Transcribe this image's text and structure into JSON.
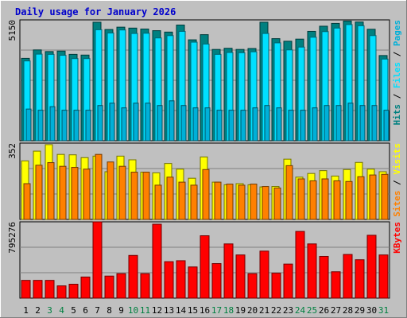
{
  "colors": {
    "background": "#c0c0c0",
    "plot_bg": "#c0c0c0",
    "grid": "#808080",
    "title": "#0000cc",
    "hits": "#008080",
    "files": "#00e0ff",
    "pages": "#00b0d8",
    "visits": "#ffff00",
    "sites": "#ff8000",
    "kbytes": "#ff0000",
    "weekend_label": "#008040",
    "weekday_label": "#000000"
  },
  "chart_data": {
    "type": "bar",
    "title": "Daily usage for January 2026",
    "categories": [
      "1",
      "2",
      "3",
      "4",
      "5",
      "6",
      "7",
      "8",
      "9",
      "10",
      "11",
      "12",
      "13",
      "14",
      "15",
      "16",
      "17",
      "18",
      "19",
      "20",
      "21",
      "22",
      "23",
      "24",
      "25",
      "26",
      "27",
      "28",
      "29",
      "30",
      "31"
    ],
    "weekend_days": [
      "3",
      "4",
      "10",
      "11",
      "17",
      "18",
      "24",
      "25",
      "31"
    ],
    "panels": [
      {
        "id": "hits",
        "ymax": 5150,
        "ymax_label": "5150",
        "legend": [
          {
            "name": "Hits",
            "color": "#008080"
          },
          {
            "name": "Files",
            "color": "#00e0ff"
          },
          {
            "name": "Pages",
            "color": "#00b0d8"
          }
        ],
        "series": [
          {
            "name": "Hits",
            "values": [
              3510,
              3870,
              3800,
              3820,
              3680,
              3650,
              5050,
              4740,
              4840,
              4800,
              4760,
              4690,
              4630,
              4930,
              4300,
              4520,
              3890,
              3940,
              3890,
              3930,
              5050,
              4350,
              4240,
              4330,
              4660,
              4880,
              5000,
              5100,
              5060,
              4750,
              3630
            ]
          },
          {
            "name": "Files",
            "values": [
              3400,
              3690,
              3680,
              3640,
              3500,
              3500,
              4730,
              4590,
              4720,
              4570,
              4580,
              4380,
              4480,
              4660,
              4200,
              4120,
              3680,
              3760,
              3750,
              3790,
              4570,
              4170,
              3870,
              3990,
              4410,
              4650,
              4800,
              4950,
              4900,
              4480,
              3480
            ]
          },
          {
            "name": "Pages",
            "values": [
              1350,
              1300,
              1450,
              1300,
              1300,
              1300,
              1500,
              1600,
              1400,
              1600,
              1600,
              1500,
              1700,
              1500,
              1400,
              1400,
              1300,
              1300,
              1300,
              1400,
              1500,
              1400,
              1300,
              1300,
              1400,
              1500,
              1500,
              1600,
              1500,
              1500,
              1300
            ]
          }
        ]
      },
      {
        "id": "visits",
        "ymax": 352,
        "ymax_label": "352",
        "legend": [
          {
            "name": "Sites",
            "color": "#ff8000"
          },
          {
            "name": "Visits",
            "color": "#ffff00"
          }
        ],
        "series": [
          {
            "name": "Visits",
            "values": [
              270,
              315,
              345,
              300,
              298,
              285,
              292,
              220,
              292,
              275,
              218,
              215,
              258,
              232,
              190,
              288,
              172,
              160,
              165,
              160,
              150,
              152,
              278,
              195,
              212,
              225,
              200,
              230,
              263,
              232,
              220
            ]
          },
          {
            "name": "Sites",
            "values": [
              165,
              250,
              262,
              245,
              240,
              232,
              300,
              265,
              245,
              218,
              218,
              158,
              195,
              172,
              158,
              230,
              172,
              163,
              158,
              163,
              152,
              145,
              248,
              187,
              178,
              187,
              178,
              175,
              197,
              205,
              208
            ]
          }
        ]
      },
      {
        "id": "kbytes",
        "ymax": 795276,
        "ymax_label": "795276",
        "legend": [
          {
            "name": "KBytes",
            "color": "#ff0000"
          }
        ],
        "series": [
          {
            "name": "KBytes",
            "values": [
              185000,
              185000,
              185000,
              128000,
              145000,
              220000,
              795000,
              230000,
              255000,
              445000,
              255000,
              770000,
              380000,
              390000,
              325000,
              650000,
              360000,
              565000,
              450000,
              255000,
              490000,
              260000,
              355000,
              695000,
              565000,
              435000,
              275000,
              455000,
              400000,
              655000,
              450000
            ]
          }
        ]
      }
    ]
  }
}
